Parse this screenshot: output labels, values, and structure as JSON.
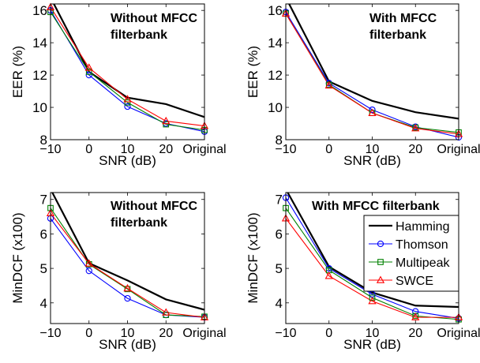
{
  "series_styles": [
    {
      "name": "Hamming",
      "color": "#000000",
      "marker": "none"
    },
    {
      "name": "Thomson",
      "color": "#0000ff",
      "marker": "circle"
    },
    {
      "name": "Multipeak",
      "color": "#008000",
      "marker": "square"
    },
    {
      "name": "SWCE",
      "color": "#ff0000",
      "marker": "triangle"
    }
  ],
  "chart_data": [
    {
      "type": "line",
      "annotation": [
        "Without MFCC",
        "filterbank"
      ],
      "xlabel": "SNR (dB)",
      "ylabel": "EER (%)",
      "categories": [
        "−10",
        "0",
        "10",
        "20",
        "Original"
      ],
      "ylim": [
        8,
        16.4
      ],
      "yticks": [
        "8",
        "10",
        "12",
        "14",
        "16"
      ],
      "legend": null,
      "series": [
        {
          "name": "Hamming",
          "values": [
            16.8,
            12.2,
            10.6,
            10.2,
            9.4
          ]
        },
        {
          "name": "Thomson",
          "values": [
            16.0,
            12.0,
            10.05,
            9.0,
            8.5
          ]
        },
        {
          "name": "Multipeak",
          "values": [
            15.9,
            12.2,
            10.3,
            8.95,
            8.6
          ]
        },
        {
          "name": "SWCE",
          "values": [
            16.2,
            12.45,
            10.5,
            9.15,
            8.85
          ]
        }
      ]
    },
    {
      "type": "line",
      "annotation": [
        "With MFCC",
        "filterbank"
      ],
      "xlabel": "SNR (dB)",
      "ylabel": "EER (%)",
      "categories": [
        "−10",
        "0",
        "10",
        "20",
        "Original"
      ],
      "ylim": [
        8,
        16.4
      ],
      "yticks": [
        "8",
        "10",
        "12",
        "14",
        "16"
      ],
      "legend": null,
      "series": [
        {
          "name": "Hamming",
          "values": [
            16.8,
            11.6,
            10.4,
            9.7,
            9.3
          ]
        },
        {
          "name": "Thomson",
          "values": [
            15.9,
            11.5,
            9.85,
            8.8,
            8.15
          ]
        },
        {
          "name": "Multipeak",
          "values": [
            15.8,
            11.4,
            9.65,
            8.75,
            8.45
          ]
        },
        {
          "name": "SWCE",
          "values": [
            15.8,
            11.35,
            9.65,
            8.7,
            8.35
          ]
        }
      ]
    },
    {
      "type": "line",
      "annotation": [
        "Without MFCC",
        "filterbank"
      ],
      "xlabel": "SNR (dB)",
      "ylabel": "MinDCF (x100)",
      "categories": [
        "−10",
        "0",
        "10",
        "20",
        "Original"
      ],
      "ylim": [
        3.4,
        7.2
      ],
      "yticks": [
        "4",
        "5",
        "6",
        "7"
      ],
      "legend": null,
      "series": [
        {
          "name": "Hamming",
          "values": [
            7.3,
            5.15,
            4.65,
            4.1,
            3.8
          ]
        },
        {
          "name": "Thomson",
          "values": [
            6.45,
            4.93,
            4.13,
            3.65,
            3.58
          ]
        },
        {
          "name": "Multipeak",
          "values": [
            6.75,
            5.12,
            4.4,
            3.65,
            3.6
          ]
        },
        {
          "name": "SWCE",
          "values": [
            6.6,
            5.14,
            4.42,
            3.72,
            3.58
          ]
        }
      ]
    },
    {
      "type": "line",
      "annotation": [
        "With MFCC filterbank"
      ],
      "xlabel": "SNR (dB)",
      "ylabel": "MinDCF (x100)",
      "categories": [
        "−10",
        "0",
        "10",
        "20",
        "Original"
      ],
      "ylim": [
        3.4,
        7.2
      ],
      "yticks": [
        "4",
        "5",
        "6",
        "7"
      ],
      "legend": [
        "Hamming",
        "Thomson",
        "Multipeak",
        "SWCE"
      ],
      "series": [
        {
          "name": "Hamming",
          "values": [
            7.3,
            5.05,
            4.3,
            3.92,
            3.88
          ]
        },
        {
          "name": "Thomson",
          "values": [
            7.05,
            5.0,
            4.25,
            3.75,
            3.55
          ]
        },
        {
          "name": "Multipeak",
          "values": [
            6.75,
            4.95,
            4.15,
            3.62,
            3.52
          ]
        },
        {
          "name": "SWCE",
          "values": [
            6.45,
            4.78,
            4.05,
            3.58,
            3.58
          ]
        }
      ]
    }
  ]
}
